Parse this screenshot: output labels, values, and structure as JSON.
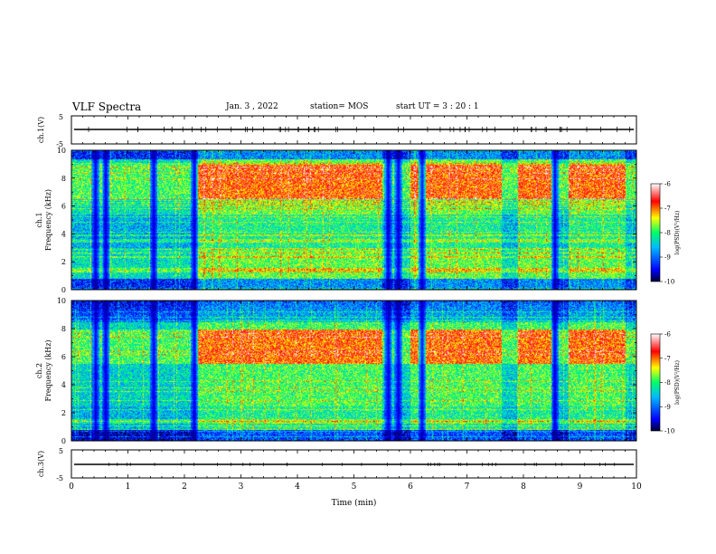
{
  "header": {
    "title": "VLF Spectra",
    "date": "Jan. 3 , 2022",
    "station": "station= MOS",
    "start": "start UT = 3 : 20 : 1"
  },
  "chart_data": {
    "type": "heatmap",
    "xlabel": "Time (min)",
    "xlim": [
      0,
      10
    ],
    "x_ticks": [
      "0",
      "1",
      "2",
      "3",
      "4",
      "5",
      "6",
      "7",
      "8",
      "9",
      "10"
    ],
    "panels": [
      {
        "id": "ch1-voltage",
        "ylabel": "ch.1(V)",
        "ylim": [
          -5,
          5
        ],
        "y_ticks": [
          "5",
          "-5"
        ]
      },
      {
        "id": "ch1-spectrogram",
        "ylabel_top": "ch.1",
        "ylabel": "Frequency (kHz)",
        "ylim": [
          0,
          10
        ],
        "y_ticks": [
          "10",
          "8",
          "6",
          "4",
          "2",
          "0"
        ]
      },
      {
        "id": "ch2-spectrogram",
        "ylabel_top": "ch.2",
        "ylabel": "Frequency (kHz)",
        "ylim": [
          0,
          10
        ],
        "y_ticks": [
          "10",
          "8",
          "6",
          "4",
          "2",
          "0"
        ]
      },
      {
        "id": "ch3-voltage",
        "ylabel": "ch.3(V)",
        "ylim": [
          -5,
          5
        ],
        "y_ticks": [
          "5",
          "-5"
        ]
      }
    ],
    "colorbar": {
      "label": "log(PSD)(V²/Hz)",
      "range": [
        -10,
        -6
      ],
      "ticks": [
        "-6",
        "-7",
        "-8",
        "-9",
        "-10"
      ],
      "colormap": [
        "#000033",
        "#0000ff",
        "#00bbff",
        "#00ff66",
        "#ffff00",
        "#ff0000",
        "#ffffff"
      ]
    },
    "bright_bands_min": [
      [
        2.2,
        5.5
      ],
      [
        6.0,
        7.6
      ],
      [
        7.9,
        8.5
      ],
      [
        8.8,
        9.8
      ]
    ],
    "dark_gaps_min": [
      0.42,
      0.6,
      1.45,
      2.17,
      5.6,
      5.78,
      6.2,
      8.55
    ]
  }
}
